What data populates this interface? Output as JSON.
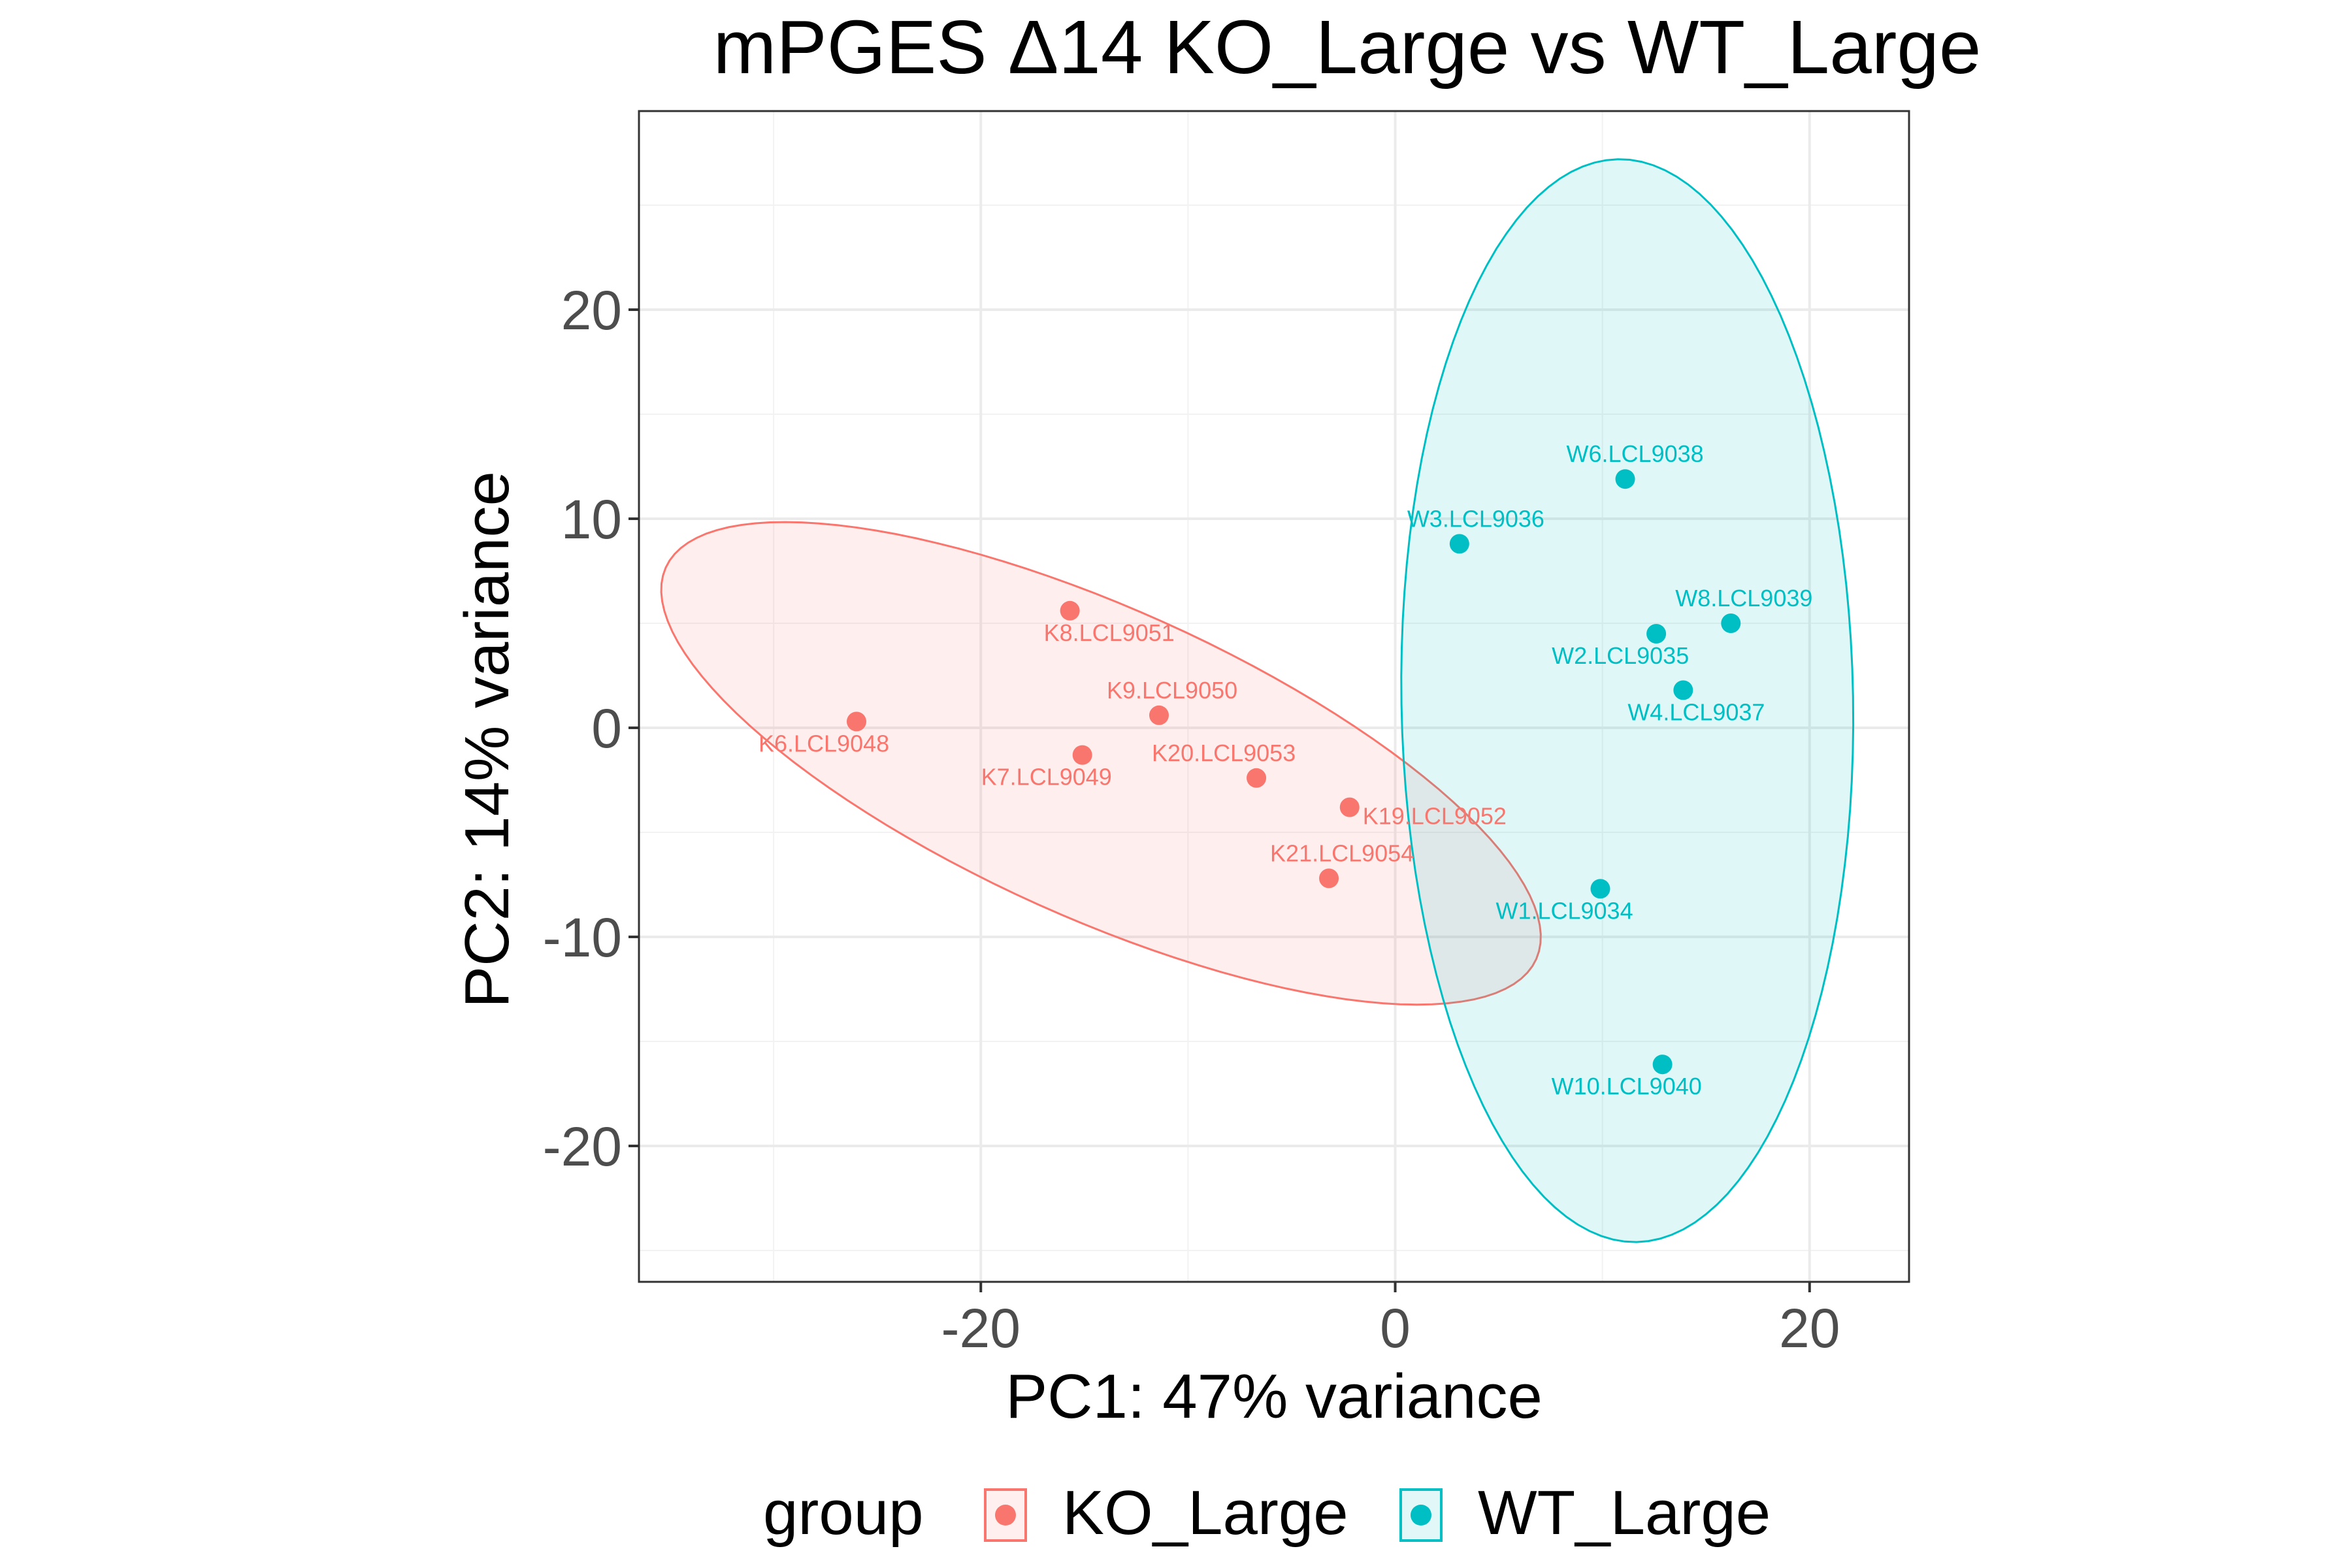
{
  "chart_data": {
    "type": "scatter",
    "title": "mPGES Δ14 KO_Large vs WT_Large",
    "xlabel": "PC1: 47% variance",
    "ylabel": "PC2: 14% variance",
    "xlim": [
      -36.5,
      24.8
    ],
    "ylim": [
      -26.5,
      29.5
    ],
    "xticks": [
      -20,
      0,
      20
    ],
    "yticks": [
      -20,
      -10,
      0,
      10,
      20
    ],
    "xtick_labels": [
      "-20",
      "0",
      "20"
    ],
    "ytick_labels": [
      "-20",
      "-10",
      "0",
      "10",
      "20"
    ],
    "grid": true,
    "legend": {
      "title": "group",
      "position": "bottom",
      "entries": [
        "KO_Large",
        "WT_Large"
      ]
    },
    "series": [
      {
        "name": "KO_Large",
        "color": "#F8766D",
        "ellipse": {
          "cx": -14.2,
          "cy": -1.7,
          "rx": 23.0,
          "ry": 7.4,
          "angle_deg": -24
        },
        "points": [
          {
            "label": "K8.LCL9051",
            "x": -15.7,
            "y": 5.6
          },
          {
            "label": "K9.LCL9050",
            "x": -11.4,
            "y": 0.6
          },
          {
            "label": "K6.LCL9048",
            "x": -26.0,
            "y": 0.3
          },
          {
            "label": "K7.LCL9049",
            "x": -15.1,
            "y": -1.3
          },
          {
            "label": "K20.LCL9053",
            "x": -6.7,
            "y": -2.4
          },
          {
            "label": "K19.LCL9052",
            "x": -2.2,
            "y": -3.8
          },
          {
            "label": "K21.LCL9054",
            "x": -3.2,
            "y": -7.2
          }
        ]
      },
      {
        "name": "WT_Large",
        "color": "#00BFC4",
        "ellipse": {
          "cx": 11.2,
          "cy": 1.3,
          "rx": 10.9,
          "ry": 25.9,
          "angle_deg": 1
        },
        "points": [
          {
            "label": "W6.LCL9038",
            "x": 11.1,
            "y": 11.9
          },
          {
            "label": "W3.LCL9036",
            "x": 3.1,
            "y": 8.8
          },
          {
            "label": "W8.LCL9039",
            "x": 16.2,
            "y": 5.0
          },
          {
            "label": "W2.LCL9035",
            "x": 12.6,
            "y": 4.5
          },
          {
            "label": "W4.LCL9037",
            "x": 13.9,
            "y": 1.8
          },
          {
            "label": "W1.LCL9034",
            "x": 9.9,
            "y": -7.7
          },
          {
            "label": "W10.LCL9040",
            "x": 12.9,
            "y": -16.1
          }
        ]
      }
    ]
  }
}
